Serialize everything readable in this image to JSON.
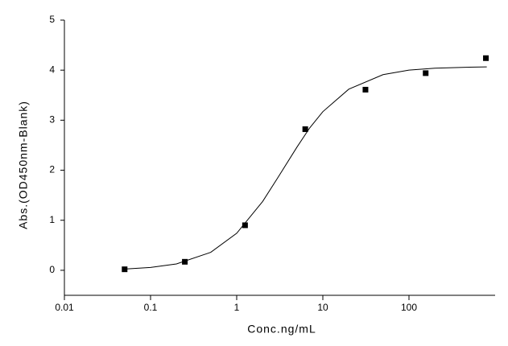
{
  "chart_data": {
    "type": "scatter",
    "x_label": "Conc.ng/mL",
    "y_label": "Abs.(OD450nm-Blank)",
    "xscale": "log",
    "xlim": [
      0.01,
      1000
    ],
    "xticks": [
      0.01,
      0.1,
      1,
      10,
      100
    ],
    "ylim": [
      -0.5,
      5
    ],
    "yticks": [
      0,
      1,
      2,
      3,
      4,
      5
    ],
    "series": [
      {
        "type": "scatter",
        "color": "#000000",
        "x": [
          0.05,
          0.25,
          1.25,
          6.25,
          31.25,
          156.25,
          781.25
        ],
        "values": [
          0.02,
          0.17,
          0.9,
          2.82,
          3.61,
          3.94,
          4.24
        ]
      },
      {
        "type": "line",
        "color": "#000000",
        "x": [
          0.05,
          0.1,
          0.2,
          0.5,
          1,
          2,
          3,
          5,
          7,
          10,
          20,
          50,
          100,
          200,
          500,
          800
        ],
        "values": [
          0.025,
          0.056,
          0.127,
          0.359,
          0.74,
          1.375,
          1.85,
          2.46,
          2.84,
          3.17,
          3.62,
          3.91,
          4.0,
          4.04,
          4.06,
          4.065
        ]
      }
    ]
  }
}
